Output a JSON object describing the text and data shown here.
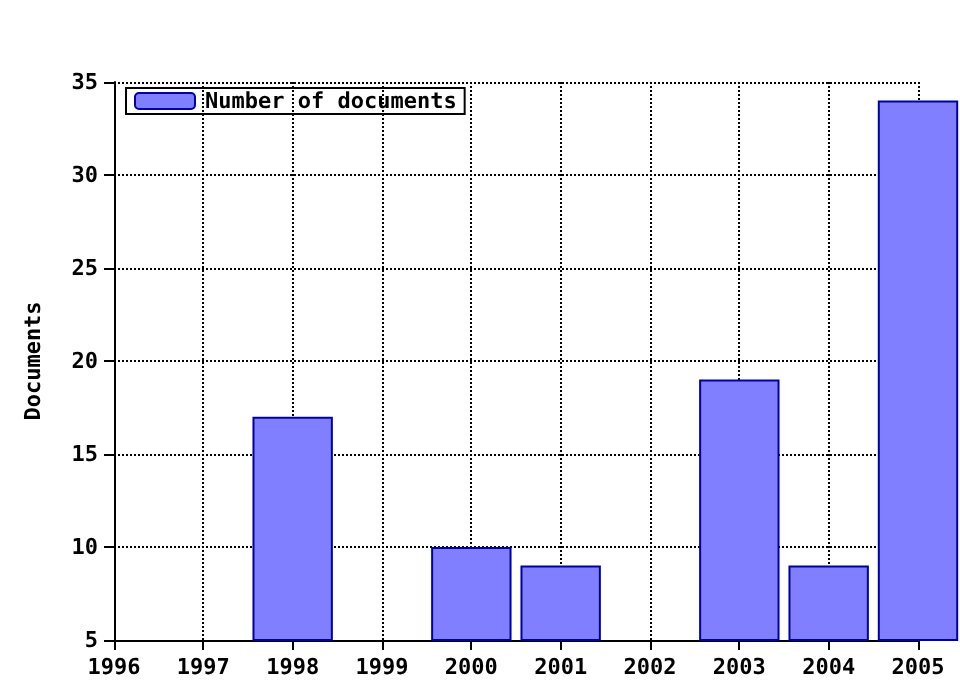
{
  "chart_data": {
    "type": "bar",
    "ylabel": "Documents",
    "x": [
      1998,
      2000,
      2001,
      2003,
      2004,
      2005
    ],
    "series": [
      {
        "name": "Number of documents",
        "color": "#7f7fff",
        "values": [
          17,
          10,
          9,
          19,
          9,
          34
        ]
      }
    ],
    "xlim": [
      1996,
      2005
    ],
    "xticks": [
      1996,
      1997,
      1998,
      1999,
      2000,
      2001,
      2002,
      2003,
      2004,
      2005
    ],
    "ylim": [
      5,
      35
    ],
    "yticks": [
      5,
      10,
      15,
      20,
      25,
      30,
      35
    ],
    "grid": true,
    "legend": "top left"
  }
}
